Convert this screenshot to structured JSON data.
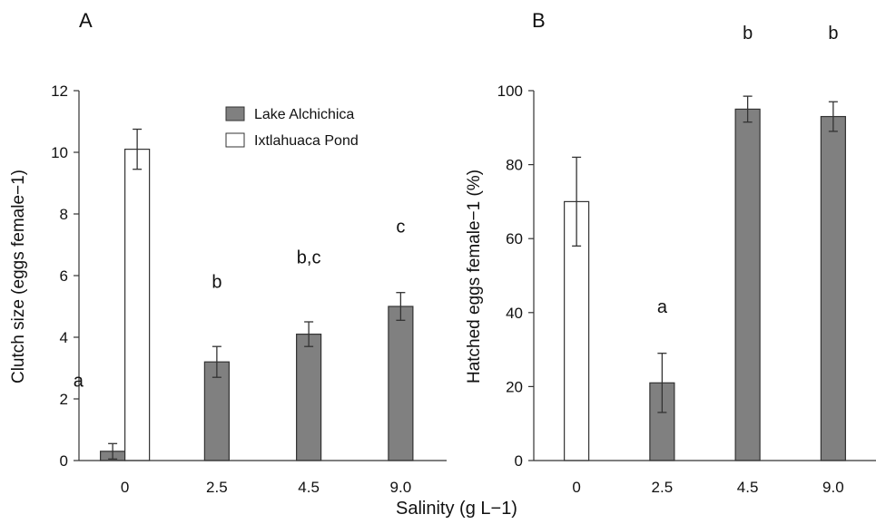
{
  "figure": {
    "shared_xlabel": "Salinity (g L−1)"
  },
  "chart_data": [
    {
      "type": "bar",
      "panel_label": "A",
      "ylabel": "Clutch size (eggs female−1)",
      "ylim": [
        0,
        12
      ],
      "yticks": [
        0,
        2,
        4,
        6,
        8,
        10,
        12
      ],
      "categories": [
        "0",
        "2.5",
        "4.5",
        "9.0"
      ],
      "series": [
        {
          "name": "Lake Alchichica",
          "color": "#808080",
          "values": [
            0.3,
            3.2,
            4.1,
            5.0
          ],
          "errors": [
            0.25,
            0.5,
            0.4,
            0.45
          ]
        },
        {
          "name": "Ixtlahuaca Pond",
          "color": "#ffffff",
          "values": [
            10.1,
            null,
            null,
            null
          ],
          "errors": [
            0.65,
            null,
            null,
            null
          ]
        }
      ],
      "annotations": [
        {
          "category": "0",
          "text": "a",
          "y": 2.4
        },
        {
          "category": "2.5",
          "text": "b",
          "y": 5.6
        },
        {
          "category": "4.5",
          "text": "b,c",
          "y": 6.4
        },
        {
          "category": "9.0",
          "text": "c",
          "y": 7.4
        }
      ],
      "legend": {
        "position": "top-right",
        "entries": [
          "Lake Alchichica",
          "Ixtlahuaca Pond"
        ]
      }
    },
    {
      "type": "bar",
      "panel_label": "B",
      "ylabel": "Hatched eggs female−1 (%)",
      "ylim": [
        0,
        100
      ],
      "yticks": [
        0,
        20,
        40,
        60,
        80,
        100
      ],
      "categories": [
        "0",
        "2.5",
        "4.5",
        "9.0"
      ],
      "series": [
        {
          "name": "Lake Alchichica",
          "color": "#808080",
          "values": [
            null,
            21,
            95,
            93
          ],
          "errors": [
            null,
            8,
            3.5,
            4
          ]
        },
        {
          "name": "Ixtlahuaca Pond",
          "color": "#ffffff",
          "values": [
            70,
            null,
            null,
            null
          ],
          "errors": [
            12,
            null,
            null,
            null
          ]
        }
      ],
      "annotations": [
        {
          "category": "2.5",
          "text": "a",
          "y": 40
        },
        {
          "category": "4.5",
          "text": "b",
          "y": 114
        },
        {
          "category": "9.0",
          "text": "b",
          "y": 114
        }
      ]
    }
  ]
}
